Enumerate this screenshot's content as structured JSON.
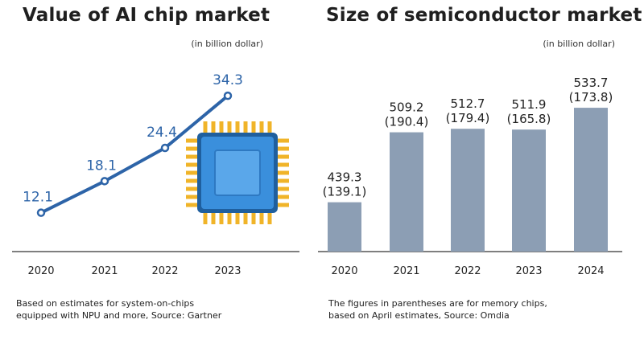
{
  "left": {
    "title": "Value of AI chip market",
    "unit": "(in billion dollar)",
    "note_line1": "Based on estimates for system-on-chips",
    "note_line2": "equipped with NPU and more, Source: Gartner"
  },
  "right": {
    "title": "Size of semiconductor market",
    "unit": "(in billion dollar)",
    "note_line1": "The figures in parentheses are for memory chips,",
    "note_line2": "based on April estimates, Source: Omdia"
  },
  "colors": {
    "line": "#2d64a8",
    "bar": "#8c9eb4",
    "axis": "#555555",
    "chip_fill": "#3a8fdc",
    "chip_pins": "#f0b429"
  },
  "chart_data": [
    {
      "type": "line",
      "title": "Value of AI chip market",
      "ylabel": "(in billion dollar)",
      "categories": [
        "2020",
        "2021",
        "2022",
        "2023"
      ],
      "values": [
        12.1,
        18.1,
        24.4,
        34.3
      ],
      "data_labels": [
        "12.1",
        "18.1",
        "24.4",
        "34.3"
      ],
      "ylim": [
        9,
        36
      ]
    },
    {
      "type": "bar",
      "title": "Size of semiconductor market",
      "ylabel": "(in billion dollar)",
      "categories": [
        "2020",
        "2021",
        "2022",
        "2023",
        "2024"
      ],
      "series": [
        {
          "values": [
            439.3,
            509.2,
            512.7,
            511.9,
            533.7
          ]
        },
        {
          "values": [
            139.1,
            190.4,
            179.4,
            165.8,
            173.8
          ]
        }
      ],
      "data_labels_top": [
        "439.3",
        "509.2",
        "512.7",
        "511.9",
        "533.7"
      ],
      "data_labels_bottom": [
        "(139.1)",
        "(190.4)",
        "(179.4)",
        "(165.8)",
        "(173.8)"
      ],
      "ylim": [
        390,
        545
      ]
    }
  ]
}
